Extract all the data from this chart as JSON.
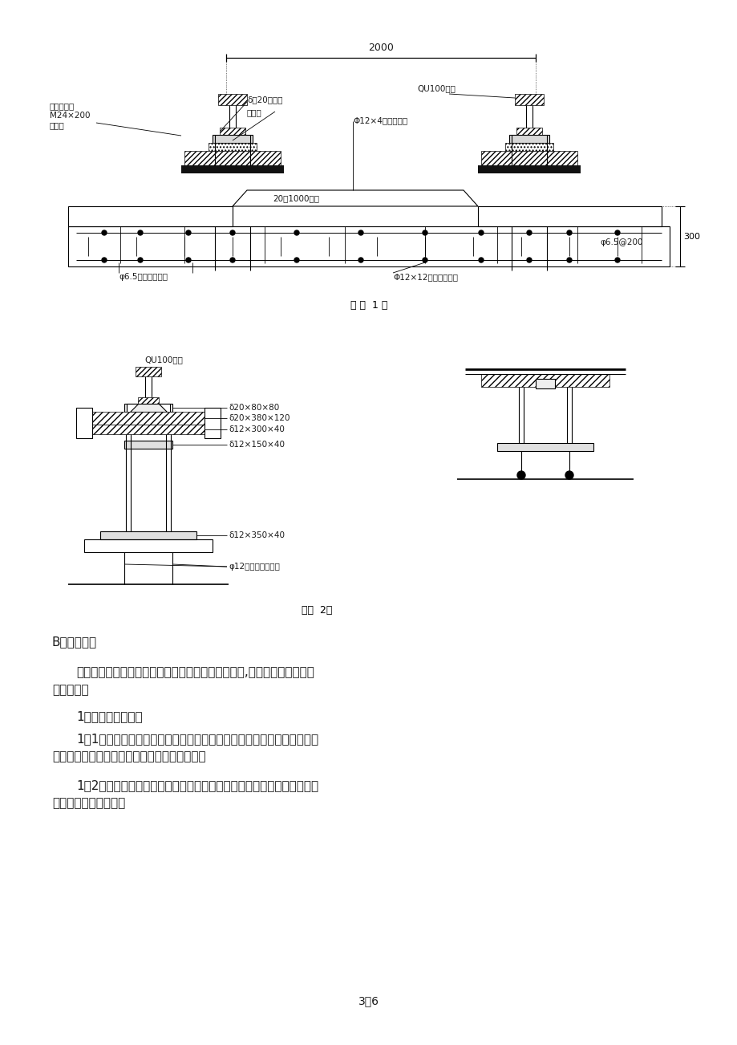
{
  "page_bg": "#ffffff",
  "fig1_caption": "（ 图  1 ）",
  "fig2_caption": "（图  2）",
  "page_num": "3／6",
  "line_color": "#000000",
  "text_color": "#1a1a1a",
  "fig1": {
    "dim_2000": "2000",
    "label_bolt": "不锈钢螺栓",
    "label_bolt2": "M24×200",
    "label_stop": "止退挡",
    "label_steel_pad": "δ＝20钢垫板",
    "label_rubber": "橡胶垫",
    "label_rail": "QU100钢轨",
    "label_rebar": "Φ12×4长轨枕钢筋",
    "label_slope": "20：1000放坡",
    "label_phi65_200": "φ6.5@200",
    "label_dim_300": "300",
    "label_conn_rebar": "φ6.5螺栓连接钢筋",
    "label_found_rebar": "Φ12×12基础纵向钢筋"
  },
  "fig2": {
    "label_rail": "QU100钢轨",
    "label_d20x80x80": "δ20×80×80",
    "label_d20x380x120": "δ20×380×120",
    "label_d12x300x40": "δ12×300×40",
    "label_d12x150x40": "δ12×150×40",
    "label_d12x350x40": "δ12×350×40",
    "label_phi12_conn": "φ12与基础连接钢筋"
  },
  "text_B": "B、施工步骤",
  "text_p1a": "本工程是利用检修时间和工余时间来完成施工任务的,为不停产施工。具体",
  "text_p1b": "施工步骤：",
  "text_i1": "1．测量及轨道加固",
  "text_i1_1a": "1．1全线测量：测量人员根据现场的水准高程定位放线，经技术人员复测",
  "text_i1_1b": "无误后，进行放线施工；并做好标识加以保护。",
  "text_i1_2a": "1．2道床加固：加焊临时轨距挡，用临时钢垫板找平，确保轨道直线、跨",
  "text_i1_2b": "距偏差在标准范围内。"
}
